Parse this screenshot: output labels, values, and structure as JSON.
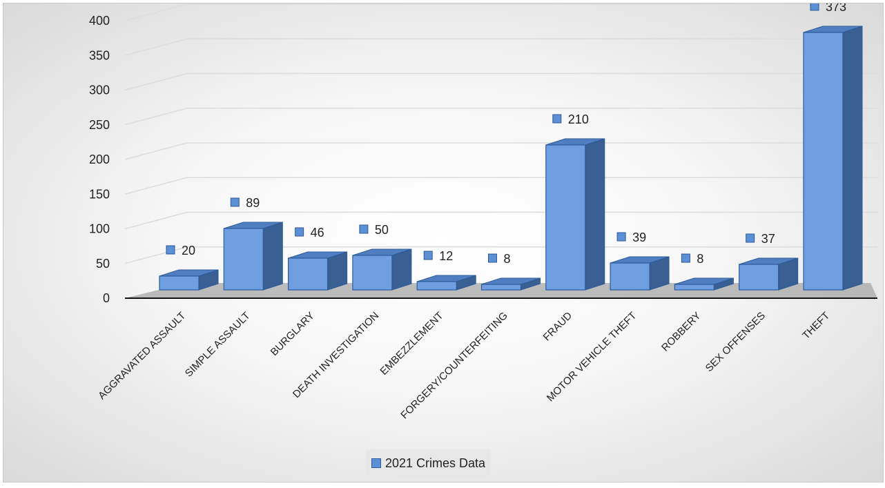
{
  "chart_data": {
    "type": "bar",
    "categories": [
      "AGGRAVATED ASSAULT",
      "SIMPLE ASSAULT",
      "BURGLARY",
      "DEATH INVESTIGATION",
      "EMBEZZLEMENT",
      "FORGERY/COUNTERFEITING",
      "FRAUD",
      "MOTOR VEHICLE THEFT",
      "ROBBERY",
      "SEX OFFENSES",
      "THEFT"
    ],
    "series": [
      {
        "name": "2021 Crimes Data",
        "values": [
          20,
          89,
          46,
          50,
          12,
          8,
          210,
          39,
          8,
          37,
          373
        ]
      }
    ],
    "ylim": [
      0,
      400
    ],
    "yticks": [
      0,
      50,
      100,
      150,
      200,
      250,
      300,
      350,
      400
    ],
    "grid": true,
    "legend_position": "bottom",
    "bar_style": "3d",
    "colors": {
      "bar_front": "#6f9fe0",
      "bar_side": "#3a5f92",
      "bar_top": "#4f7fc0",
      "bar_edge": "#2d5a99",
      "floor": "#a7a7a7"
    }
  }
}
